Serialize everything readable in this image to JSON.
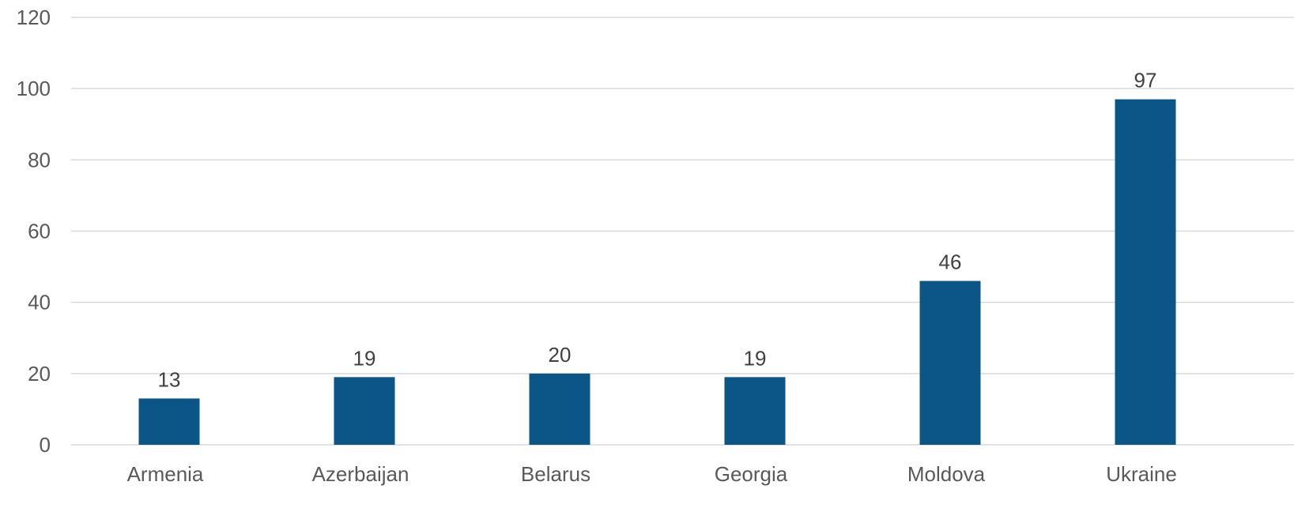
{
  "chart_data": {
    "type": "bar",
    "title": "",
    "xlabel": "",
    "ylabel": "",
    "categories": [
      "Armenia",
      "Azerbaijan",
      "Belarus",
      "Georgia",
      "Moldova",
      "Ukraine"
    ],
    "values": [
      13,
      19,
      20,
      19,
      46,
      97
    ],
    "data_labels": [
      "13",
      "19",
      "20",
      "19",
      "46",
      "97"
    ],
    "ylim": [
      0,
      120
    ],
    "yticks": [
      0,
      20,
      40,
      60,
      80,
      100,
      120
    ],
    "ytick_labels": [
      "0",
      "20",
      "40",
      "60",
      "80",
      "100",
      "120"
    ],
    "grid": true,
    "legend": "none",
    "bar_color": "#0b5587",
    "grid_color": "#d9d9d9"
  }
}
